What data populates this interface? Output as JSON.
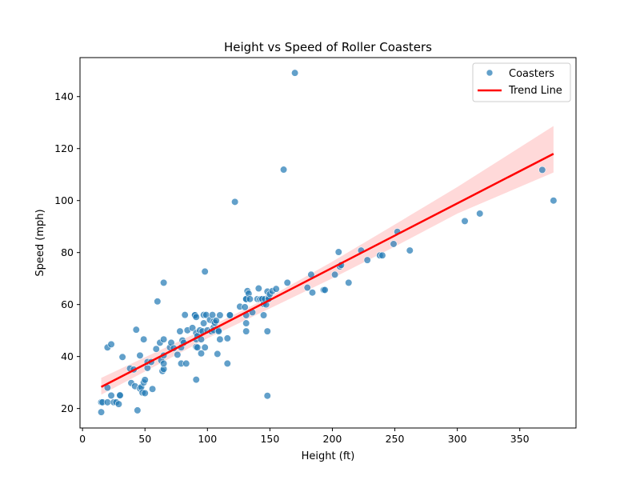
{
  "chart_data": {
    "type": "scatter",
    "title": "Height vs Speed of Roller Coasters",
    "xlabel": "Height (ft)",
    "ylabel": "Speed (mph)",
    "xlim": [
      -2,
      395
    ],
    "ylim": [
      12.5,
      155
    ],
    "xticks": [
      0,
      50,
      100,
      150,
      200,
      250,
      300,
      350
    ],
    "yticks": [
      20,
      40,
      60,
      80,
      100,
      120,
      140
    ],
    "grid": false,
    "legend_position": "top-right",
    "series": [
      {
        "name": "Coasters",
        "kind": "scatter",
        "color": "#1f77b4",
        "alpha": 0.7,
        "points": [
          [
            15,
            18.6
          ],
          [
            15,
            22.4
          ],
          [
            16,
            22.4
          ],
          [
            20,
            22.4
          ],
          [
            20,
            28
          ],
          [
            20,
            43.5
          ],
          [
            23,
            25
          ],
          [
            23,
            44.7
          ],
          [
            25,
            22.4
          ],
          [
            27,
            22.4
          ],
          [
            29,
            21.7
          ],
          [
            30,
            24.9
          ],
          [
            30,
            25.1
          ],
          [
            32,
            39.8
          ],
          [
            38,
            35.4
          ],
          [
            39,
            29.8
          ],
          [
            41,
            35
          ],
          [
            42,
            28.6
          ],
          [
            43,
            50.3
          ],
          [
            44,
            19.3
          ],
          [
            46,
            40.4
          ],
          [
            46,
            27.7
          ],
          [
            47,
            28.2
          ],
          [
            48,
            26.1
          ],
          [
            49,
            30
          ],
          [
            49,
            46.6
          ],
          [
            50,
            31
          ],
          [
            50,
            25.9
          ],
          [
            52,
            35.6
          ],
          [
            52,
            37.9
          ],
          [
            55,
            37.9
          ],
          [
            56,
            27.5
          ],
          [
            59,
            42.9
          ],
          [
            60,
            61.2
          ],
          [
            62,
            45.3
          ],
          [
            63,
            38.5
          ],
          [
            64,
            34.4
          ],
          [
            65,
            68.4
          ],
          [
            65,
            35.2
          ],
          [
            65,
            37.3
          ],
          [
            65,
            46.6
          ],
          [
            65,
            40.4
          ],
          [
            70,
            43.5
          ],
          [
            71,
            45.3
          ],
          [
            73,
            43.2
          ],
          [
            76,
            40.7
          ],
          [
            78,
            49.7
          ],
          [
            79,
            37.3
          ],
          [
            79,
            43.5
          ],
          [
            80,
            46.2
          ],
          [
            81,
            45.3
          ],
          [
            82,
            56
          ],
          [
            83,
            37.3
          ],
          [
            84,
            50.1
          ],
          [
            88,
            51
          ],
          [
            90,
            56
          ],
          [
            90,
            55.9
          ],
          [
            91,
            46.6
          ],
          [
            91,
            55.2
          ],
          [
            91,
            49.1
          ],
          [
            91,
            31.1
          ],
          [
            91,
            43.7
          ],
          [
            92,
            43.5
          ],
          [
            92,
            47.9
          ],
          [
            94,
            50.1
          ],
          [
            95,
            41.2
          ],
          [
            95,
            46.6
          ],
          [
            96,
            49.7
          ],
          [
            97,
            56
          ],
          [
            97,
            52.8
          ],
          [
            98,
            72.7
          ],
          [
            98,
            43.5
          ],
          [
            99,
            56
          ],
          [
            100,
            50.1
          ],
          [
            102,
            54.1
          ],
          [
            103,
            49.7
          ],
          [
            104,
            56
          ],
          [
            105,
            53.4
          ],
          [
            105,
            51.2
          ],
          [
            105,
            50.1
          ],
          [
            106,
            53
          ],
          [
            107,
            53.8
          ],
          [
            108,
            41
          ],
          [
            109,
            50.1
          ],
          [
            109,
            49.7
          ],
          [
            110,
            55.9
          ],
          [
            110,
            46.6
          ],
          [
            116,
            47
          ],
          [
            116,
            37.3
          ],
          [
            118,
            56
          ],
          [
            118,
            55.9
          ],
          [
            122,
            99.5
          ],
          [
            126,
            59.2
          ],
          [
            130,
            59
          ],
          [
            131,
            62.1
          ],
          [
            131,
            62.1
          ],
          [
            131,
            55.9
          ],
          [
            131,
            52.8
          ],
          [
            131,
            49.7
          ],
          [
            132,
            65.2
          ],
          [
            133,
            64.2
          ],
          [
            134,
            62.1
          ],
          [
            136,
            57
          ],
          [
            140,
            62.1
          ],
          [
            141,
            66.2
          ],
          [
            142,
            62
          ],
          [
            143,
            62.1
          ],
          [
            144,
            62.1
          ],
          [
            145,
            55.9
          ],
          [
            145,
            60.2
          ],
          [
            146,
            62.1
          ],
          [
            147,
            60
          ],
          [
            148,
            49.7
          ],
          [
            148,
            65
          ],
          [
            149,
            62.8
          ],
          [
            148,
            24.9
          ],
          [
            149,
            62.1
          ],
          [
            150,
            64
          ],
          [
            152,
            65.2
          ],
          [
            155,
            66
          ],
          [
            161,
            111.9
          ],
          [
            164,
            68.4
          ],
          [
            170,
            149.1
          ],
          [
            180,
            66.5
          ],
          [
            183,
            71.5
          ],
          [
            184,
            64.6
          ],
          [
            193,
            65.6
          ],
          [
            194,
            65.6
          ],
          [
            202,
            71.5
          ],
          [
            205,
            80.2
          ],
          [
            206,
            74.6
          ],
          [
            207,
            75.2
          ],
          [
            213,
            68.4
          ],
          [
            223,
            80.8
          ],
          [
            228,
            77.1
          ],
          [
            238,
            78.9
          ],
          [
            240,
            78.9
          ],
          [
            249,
            83.3
          ],
          [
            252,
            88
          ],
          [
            262,
            80.8
          ],
          [
            306,
            92.1
          ],
          [
            318,
            95
          ],
          [
            368,
            111.8
          ],
          [
            377,
            100
          ]
        ]
      },
      {
        "name": "Trend Line",
        "kind": "line",
        "color": "#ff0000",
        "x": [
          15,
          377
        ],
        "y": [
          28.3,
          118
        ],
        "ci_upper_x": [
          15,
          100,
          150,
          200,
          250,
          300,
          377
        ],
        "ci_upper_y": [
          31.8,
          51.0,
          63.0,
          76.5,
          90.8,
          105.2,
          128.7
        ],
        "ci_lower_x": [
          15,
          100,
          150,
          200,
          250,
          300,
          377
        ],
        "ci_lower_y": [
          25.3,
          47.0,
          58.5,
          70.1,
          82.3,
          95.0,
          110.8
        ],
        "ci_color": "#ff0000",
        "ci_alpha": 0.15
      }
    ]
  }
}
